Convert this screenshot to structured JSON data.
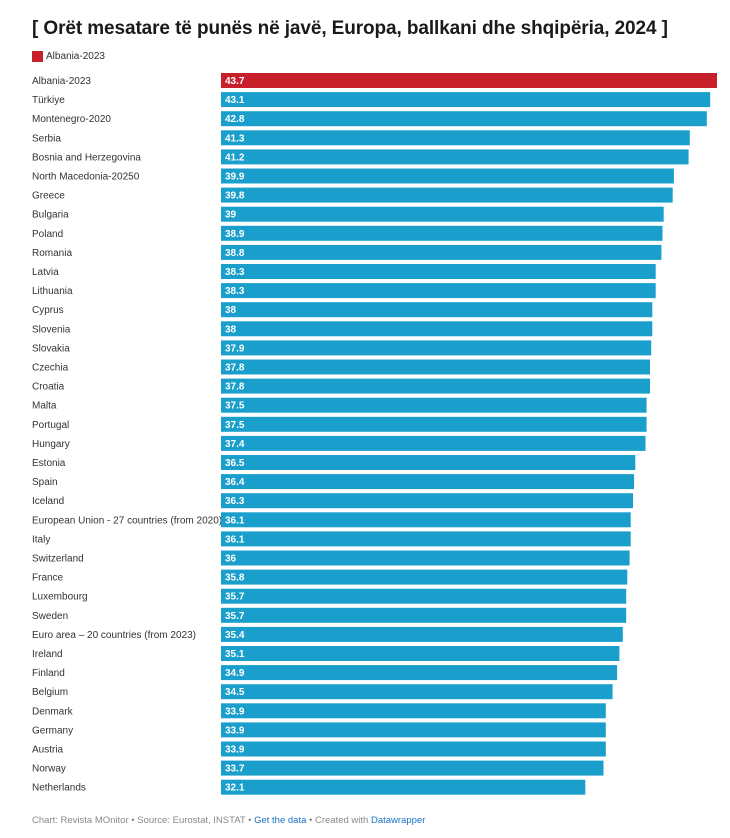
{
  "colors": {
    "highlight": "#c8202a",
    "default_bar": "#1a9fcc",
    "label_in_bar": "#ffffff"
  },
  "chart_data": {
    "type": "bar",
    "orientation": "horizontal",
    "title": "[ Orët mesatare të punës në javë, Europa, ballkani dhe shqipëria, 2024 ]",
    "legend": [
      {
        "label": "Albania-2023",
        "color": "#c8202a"
      }
    ],
    "highlight_category": "Albania-2023",
    "xlim": [
      0,
      43.7
    ],
    "categories": [
      "Albania-2023",
      "Türkiye",
      "Montenegro-2020",
      "Serbia",
      "Bosnia and Herzegovina",
      "North Macedonia-20250",
      "Greece",
      "Bulgaria",
      "Poland",
      "Romania",
      "Latvia",
      "Lithuania",
      "Cyprus",
      "Slovenia",
      "Slovakia",
      "Czechia",
      "Croatia",
      "Malta",
      "Portugal",
      "Hungary",
      "Estonia",
      "Spain",
      "Iceland",
      "European Union - 27 countries (from 2020)",
      "Italy",
      "Switzerland",
      "France",
      "Luxembourg",
      "Sweden",
      "Euro area – 20 countries (from 2023)",
      "Ireland",
      "Finland",
      "Belgium",
      "Denmark",
      "Germany",
      "Austria",
      "Norway",
      "Netherlands"
    ],
    "values": [
      43.7,
      43.1,
      42.8,
      41.3,
      41.2,
      39.9,
      39.8,
      39,
      38.9,
      38.8,
      38.3,
      38.3,
      38,
      38,
      37.9,
      37.8,
      37.8,
      37.5,
      37.5,
      37.4,
      36.5,
      36.4,
      36.3,
      36.1,
      36.1,
      36,
      35.8,
      35.7,
      35.7,
      35.4,
      35.1,
      34.9,
      34.5,
      33.9,
      33.9,
      33.9,
      33.7,
      32.1
    ],
    "value_labels": [
      "43.7",
      "43.1",
      "42.8",
      "41.3",
      "41.2",
      "39.9",
      "39.8",
      "39",
      "38.9",
      "38.8",
      "38.3",
      "38.3",
      "38",
      "38",
      "37.9",
      "37.8",
      "37.8",
      "37.5",
      "37.5",
      "37.4",
      "36.5",
      "36.4",
      "36.3",
      "36.1",
      "36.1",
      "36",
      "35.8",
      "35.7",
      "35.7",
      "35.4",
      "35.1",
      "34.9",
      "34.5",
      "33.9",
      "33.9",
      "33.9",
      "33.7",
      "32.1"
    ]
  },
  "footer": {
    "chart_by": "Chart: Revista MOnitor",
    "sep1": " • ",
    "source": "Source: Eurostat, INSTAT",
    "sep2": " • ",
    "get_data": "Get the data",
    "sep3": " • ",
    "created_with": "Created with ",
    "datawrapper": "Datawrapper"
  }
}
